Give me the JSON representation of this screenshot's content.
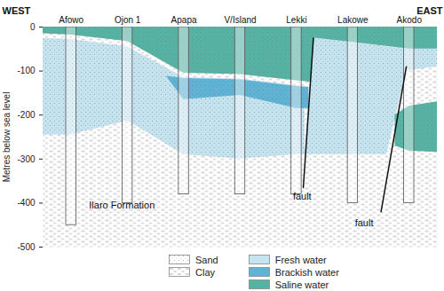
{
  "chart_data": {
    "type": "cross_section",
    "west_label": "WEST",
    "east_label": "EAST",
    "y_label": "Metres below sea level",
    "categories": [
      "Afowo",
      "Ojon 1",
      "Apapa",
      "V/Island",
      "Lekki",
      "Lakowe",
      "Akodo"
    ],
    "well_depths": [
      -450,
      -400,
      -380,
      -380,
      -380,
      -400,
      -400
    ],
    "ylim": [
      -500,
      0
    ],
    "yticks": [
      0,
      -100,
      -200,
      -300,
      -400,
      -500
    ],
    "tick_labels": "y",
    "series": [
      {
        "name": "Sand",
        "marker": "dots"
      },
      {
        "name": "Clay",
        "marker": "dashes"
      },
      {
        "name": "Fresh water",
        "color": "#c6e3f0",
        "bodies": [
          {
            "x": [
              -0.5,
              0,
              1,
              2,
              3,
              4,
              4.15
            ],
            "top": [
              -26,
              -28,
              -45,
              -115,
              -118,
              -133,
              -135
            ],
            "bottom": [
              -245,
              -245,
              -213,
              -290,
              -300,
              -290,
              -290
            ]
          },
          {
            "x": [
              4.15,
              4.3,
              5,
              5.6,
              5.95,
              6.5
            ],
            "top": [
              -290,
              -25,
              -35,
              -45,
              -50,
              -50
            ],
            "bottom": [
              -290,
              -290,
              -290,
              -290,
              -100,
              -90
            ]
          }
        ]
      },
      {
        "name": "Brackish water",
        "color": "#5fb3d4",
        "bodies": [
          {
            "x": [
              1.7,
              2,
              3,
              4,
              4.22
            ],
            "top": [
              -112,
              -117,
              -120,
              -135,
              -137
            ],
            "bottom": [
              -114,
              -165,
              -155,
              -185,
              -185
            ]
          }
        ]
      },
      {
        "name": "Saline water",
        "color": "#56b3a3",
        "bodies": [
          {
            "x": [
              -0.5,
              0,
              1,
              2,
              3,
              4,
              4.25,
              4.32,
              5,
              6,
              6.5
            ],
            "top": [
              0,
              0,
              0,
              0,
              0,
              0,
              0,
              0,
              0,
              0,
              0
            ],
            "bottom": [
              -15,
              -18,
              -33,
              -105,
              -108,
              -122,
              -125,
              -25,
              -35,
              -50,
              -50
            ]
          },
          {
            "x": [
              5.75,
              6,
              6.5
            ],
            "top": [
              -200,
              -180,
              -170
            ],
            "bottom": [
              -270,
              -282,
              -285
            ]
          }
        ]
      }
    ],
    "faults": [
      {
        "x": [
          4.3,
          4.12
        ],
        "depth": [
          -25,
          -365
        ]
      },
      {
        "x": [
          5.95,
          5.5
        ],
        "depth": [
          -90,
          -420
        ]
      }
    ],
    "annotations": [
      {
        "text": "Ilaro Formation",
        "x": 0.9,
        "y": -405
      },
      {
        "text": "fault",
        "x": 4.1,
        "y": -385
      },
      {
        "text": "fault",
        "x": 5.2,
        "y": -445
      }
    ]
  }
}
